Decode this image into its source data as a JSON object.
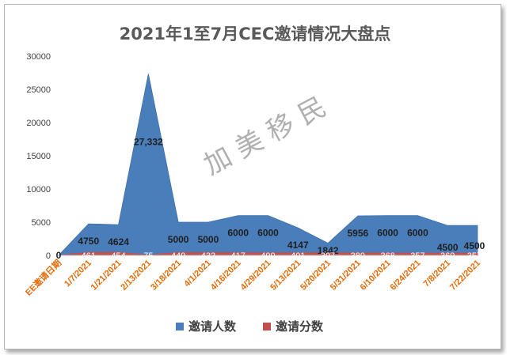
{
  "chart_data": {
    "type": "area",
    "title": "2021年1至7月CEC邀请情况大盘点",
    "xlabel": "",
    "ylabel": "",
    "ylim": [
      0,
      30000
    ],
    "yticks": [
      0,
      5000,
      10000,
      15000,
      20000,
      25000,
      30000
    ],
    "grid": false,
    "legend": "bottom",
    "categories": [
      "EE邀请日期",
      "1/7/2021",
      "1/21/2021",
      "2/13/2021",
      "3/18/2021",
      "4/1/2021",
      "4/16/2021",
      "4/29/2021",
      "5/13/2021",
      "5/20/2021",
      "5/31/2021",
      "6/10/2021",
      "6/24/2021",
      "7/8/2021",
      "7/22/2021"
    ],
    "series": [
      {
        "name": "邀请人数",
        "color": "#4a7ebb",
        "values": [
          0,
          4750,
          4624,
          27332,
          5000,
          5000,
          6000,
          6000,
          4147,
          1842,
          5956,
          6000,
          6000,
          4500,
          4500
        ],
        "labels": [
          "0",
          "4750",
          "4624",
          "27,332",
          "5000",
          "5000",
          "6000",
          "6000",
          "4147",
          "1842",
          "5956",
          "6000",
          "6000",
          "4500",
          "4500"
        ]
      },
      {
        "name": "邀请分数",
        "color": "#c0504d",
        "values": [
          0,
          461,
          454,
          75,
          449,
          432,
          417,
          400,
          401,
          397,
          380,
          368,
          357,
          369,
          357
        ],
        "labels": [
          "0",
          "461",
          "454",
          "75",
          "449",
          "432",
          "417",
          "400",
          "401",
          "397",
          "380",
          "368",
          "357",
          "369",
          "357"
        ]
      }
    ],
    "watermark": "加 美 移 民"
  }
}
